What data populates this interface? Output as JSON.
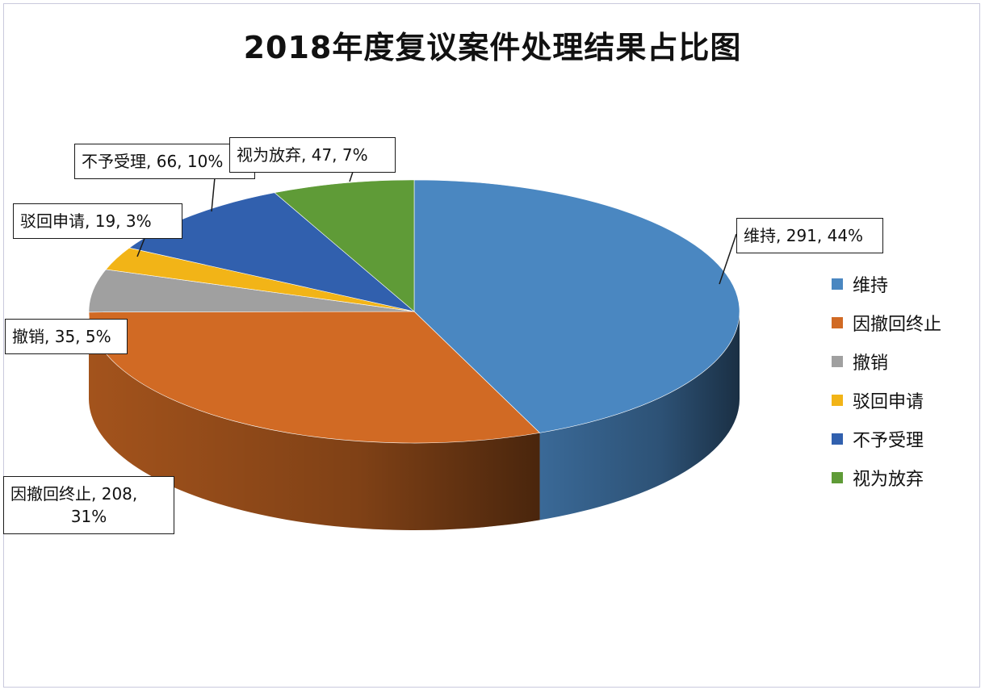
{
  "chart_data": {
    "type": "pie",
    "title": "2018年度复议案件处理结果占比图",
    "categories": [
      "维持",
      "因撤回终止",
      "撤销",
      "驳回申请",
      "不予受理",
      "视为放弃"
    ],
    "values": [
      291,
      208,
      35,
      19,
      66,
      47
    ],
    "percents": [
      "44%",
      "31%",
      "5%",
      "3%",
      "10%",
      "7%"
    ],
    "colors": [
      "#4a87c1",
      "#d16a24",
      "#a0a0a0",
      "#f2b417",
      "#3160ae",
      "#5f9b37"
    ],
    "data_labels": [
      {
        "lines": [
          "维持, 291, 44%"
        ]
      },
      {
        "lines": [
          "因撤回终止, 208,",
          "31%"
        ]
      },
      {
        "lines": [
          "撤销, 35, 5%"
        ]
      },
      {
        "lines": [
          "驳回申请, 19, 3%"
        ]
      },
      {
        "lines": [
          "不予受理, 66, 10%"
        ]
      },
      {
        "lines": [
          "视为放弃, 47, 7%"
        ]
      }
    ],
    "legend": {
      "position": "right",
      "items": [
        "维持",
        "因撤回终止",
        "撤销",
        "驳回申请",
        "不予受理",
        "视为放弃"
      ]
    },
    "style": "3d"
  }
}
